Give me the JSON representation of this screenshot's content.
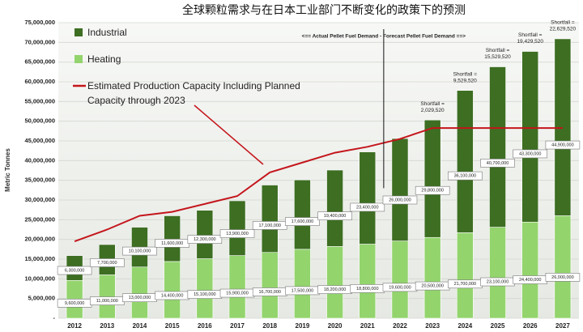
{
  "chart_data": {
    "type": "bar",
    "title": "全球颗粒需求与在日本工业部门不断变化的政策下的预测",
    "y_label": "Metric Tonnes",
    "stacked": true,
    "categories": [
      "2012",
      "2013",
      "2014",
      "2015",
      "2016",
      "2017",
      "2018",
      "2019",
      "2020",
      "2021",
      "2022",
      "2023",
      "2024",
      "2025",
      "2026",
      "2027"
    ],
    "series": [
      {
        "name": "Heating",
        "color": "#93d46d",
        "values": [
          9600000,
          11000000,
          13000000,
          14400000,
          15100000,
          15900000,
          16700000,
          17500000,
          18200000,
          18800000,
          19600000,
          20500000,
          21700000,
          23100000,
          24400000,
          26000000
        ],
        "value_labels": [
          "9,600,000",
          "11,000,000",
          "13,000,000",
          "14,400,000",
          "15,100,000",
          "15,900,000",
          "16,700,000",
          "17,500,000",
          "18,200,000",
          "18,800,000",
          "19,600,000",
          "20,500,000",
          "21,700,000",
          "23,100,000",
          "24,400,000",
          "26,000,000"
        ]
      },
      {
        "name": "Industrial",
        "color": "#3d6e22",
        "values": [
          6300000,
          7700000,
          10100000,
          11600000,
          12300000,
          13900000,
          17100000,
          17600000,
          19400000,
          23400000,
          26000000,
          29800000,
          36100000,
          40700000,
          43300000,
          44900000
        ],
        "value_labels": [
          "6,300,000",
          "7,700,000",
          "10,100,000",
          "11,600,000",
          "12,300,000",
          "13,900,000",
          "17,100,000",
          "17,600,000",
          "19,400,000",
          "23,400,000",
          "26,000,000",
          "29,800,000",
          "36,100,000",
          "40,700,000",
          "43,300,000",
          "44,900,000"
        ]
      },
      {
        "name": "Estimated Production Capacity Including Planned Capacity through 2023",
        "type": "line",
        "color": "#c4161c",
        "values": [
          19500000,
          22500000,
          26000000,
          27000000,
          29000000,
          31000000,
          37000000,
          39500000,
          42000000,
          43500000,
          45500000,
          48270480,
          48270480,
          48270480,
          48270480,
          48270480
        ]
      }
    ],
    "shortfall_prefix": "Shortfall =",
    "shortfall_labels": [
      null,
      null,
      null,
      null,
      null,
      null,
      null,
      null,
      null,
      null,
      null,
      "2,029,520",
      "9,529,520",
      "15,529,520",
      "19,429,520",
      "22,629,520"
    ],
    "divider_annotation": "<== Actual Pellet Fuel Demand - Forecast Pellet Fuel Demand ==>",
    "ylim": [
      0,
      75000000
    ],
    "yticks": [
      {
        "value": 0,
        "label": "-"
      },
      {
        "value": 5000000,
        "label": "5,000,000"
      },
      {
        "value": 10000000,
        "label": "10,000,000"
      },
      {
        "value": 15000000,
        "label": "15,000,000"
      },
      {
        "value": 20000000,
        "label": "20,000,000"
      },
      {
        "value": 25000000,
        "label": "25,000,000"
      },
      {
        "value": 30000000,
        "label": "30,000,000"
      },
      {
        "value": 35000000,
        "label": "35,000,000"
      },
      {
        "value": 40000000,
        "label": "40,000,000"
      },
      {
        "value": 45000000,
        "label": "45,000,000"
      },
      {
        "value": 50000000,
        "label": "50,000,000"
      },
      {
        "value": 55000000,
        "label": "55,000,000"
      },
      {
        "value": 60000000,
        "label": "60,000,000"
      },
      {
        "value": 65000000,
        "label": "65,000,000"
      },
      {
        "value": 70000000,
        "label": "70,000,000"
      },
      {
        "value": 75000000,
        "label": "75,000,000"
      }
    ],
    "grid": true
  }
}
